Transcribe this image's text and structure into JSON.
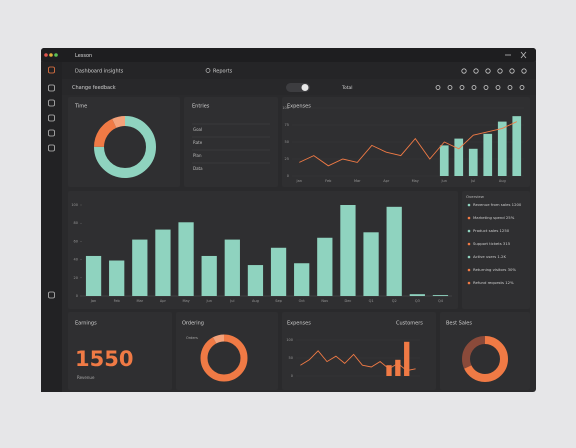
{
  "window": {
    "title": "Lesson"
  },
  "toolbar": {
    "title": "Dashboard insights",
    "search": "Reports",
    "subtitle": "Change feedback",
    "toggle_label": "Total"
  },
  "time_card": {
    "title": "Time",
    "segments": [
      {
        "value": 75,
        "color": "#8fd3bf"
      },
      {
        "value": 18,
        "color": "#f07a45"
      },
      {
        "value": 7,
        "color": "#f4a27a"
      }
    ]
  },
  "entries": {
    "title": "Entries",
    "rows": [
      "Goal",
      "Rate",
      "Plan",
      "Data"
    ]
  },
  "expenses_chart": {
    "title": "Expenses",
    "categories": [
      "Jan",
      null,
      "Feb",
      null,
      "Mar",
      null,
      "Apr",
      null,
      "May",
      null,
      "Jun",
      null,
      "Jul",
      null,
      "Aug",
      null
    ],
    "line": [
      20,
      30,
      15,
      25,
      20,
      45,
      35,
      30,
      55,
      25,
      50,
      40,
      60,
      65,
      70,
      80
    ],
    "bars": [
      null,
      null,
      null,
      null,
      null,
      null,
      null,
      null,
      null,
      null,
      45,
      55,
      40,
      62,
      80,
      88
    ],
    "ylim": [
      0,
      100
    ],
    "yticks": [
      0,
      25,
      50,
      75,
      100
    ],
    "line_color": "#f07a45",
    "bar_color": "#8fd3bf"
  },
  "main_chart": {
    "categories": [
      "Jan",
      "Feb",
      "Mar",
      "Apr",
      "May",
      "Jun",
      "Jul",
      "Aug",
      "Sep",
      "Oct",
      "Nov",
      "Dec",
      "Q1",
      "Q2",
      "Q3",
      "Q4"
    ],
    "values": [
      44,
      39,
      62,
      73,
      81,
      44,
      62,
      34,
      53,
      36,
      64,
      100,
      70,
      98,
      2,
      1
    ],
    "ylim": [
      0,
      100
    ],
    "yticks": [
      0,
      20,
      40,
      60,
      80,
      100
    ],
    "color": "#8fd3bf"
  },
  "legend": {
    "title": "Overview",
    "items": [
      {
        "label": "Revenue from sales 1200",
        "color": "#8fd3bf"
      },
      {
        "label": "Marketing spend 25%",
        "color": "#f07a45"
      },
      {
        "label": "Product sales 1250",
        "color": "#8fd3bf"
      },
      {
        "label": "Support tickets 315",
        "color": "#f07a45"
      },
      {
        "label": "Active users 1.2K",
        "color": "#8fd3bf"
      },
      {
        "label": "Returning visitors 30%",
        "color": "#f07a45"
      },
      {
        "label": "Refund requests 12%",
        "color": "#f07a45"
      }
    ]
  },
  "earnings": {
    "title": "Earnings",
    "value": "1550",
    "caption": "Revenue"
  },
  "ordering": {
    "title": "Ordering",
    "caption": "Orders",
    "segments": [
      {
        "value": 92,
        "color": "#f07a45"
      },
      {
        "value": 8,
        "color": "#f4a27a"
      }
    ]
  },
  "expenses_small": {
    "title": "Expenses",
    "subtitle": "Customers",
    "line": [
      30,
      45,
      70,
      40,
      55,
      35,
      60,
      30,
      25,
      40,
      20,
      35,
      15,
      20
    ],
    "bars": [
      null,
      null,
      null,
      null,
      null,
      null,
      null,
      null,
      null,
      null,
      30,
      45,
      95,
      null
    ],
    "ylim": [
      0,
      100
    ],
    "yticks": [
      0,
      50,
      100
    ],
    "line_color": "#f07a45",
    "bar_color": "#f07a45"
  },
  "best_sales": {
    "title": "Best Sales",
    "segments": [
      {
        "value": 68,
        "color": "#f07a45"
      },
      {
        "value": 32,
        "color": "#8a4a3a"
      }
    ]
  }
}
